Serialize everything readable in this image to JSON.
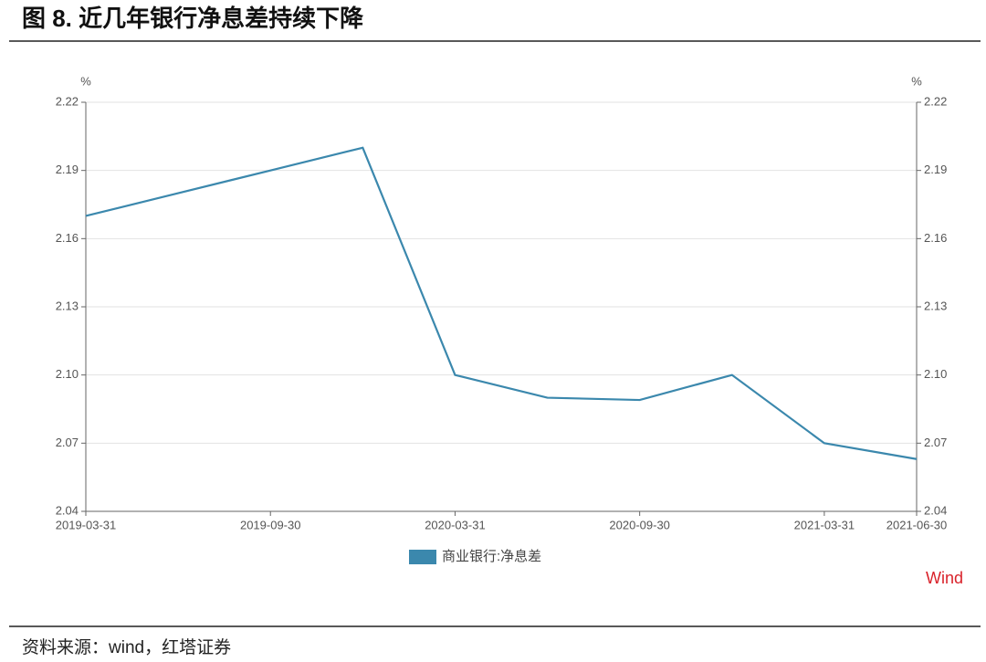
{
  "chart_data": {
    "type": "line",
    "title": "图 8. 近几年银行净息差持续下降",
    "source": "资料来源：wind，红塔证券",
    "watermark": "Wind",
    "y_unit": "%",
    "y2_unit": "%",
    "categories": [
      "2019-03-31",
      null,
      "2019-09-30",
      null,
      "2020-03-31",
      null,
      "2020-09-30",
      null,
      "2021-03-31",
      "2021-06-30"
    ],
    "series": [
      {
        "name": "商业银行:净息差",
        "color": "#3b88ad",
        "values": [
          2.17,
          2.18,
          2.19,
          2.2,
          2.1,
          2.09,
          2.089,
          2.1,
          2.07,
          2.063
        ]
      }
    ],
    "ylim": [
      2.04,
      2.22
    ],
    "yticks": [
      2.04,
      2.07,
      {
        "value": 2.1,
        "label": "2.10"
      },
      2.13,
      2.16,
      2.19,
      2.22
    ],
    "y2lim": [
      2.04,
      2.22
    ],
    "y2ticks": [
      2.04,
      2.07,
      {
        "value": 2.1,
        "label": "2.10"
      },
      2.13,
      2.16,
      2.19,
      2.22
    ],
    "grid": true,
    "legend": "bottom"
  }
}
